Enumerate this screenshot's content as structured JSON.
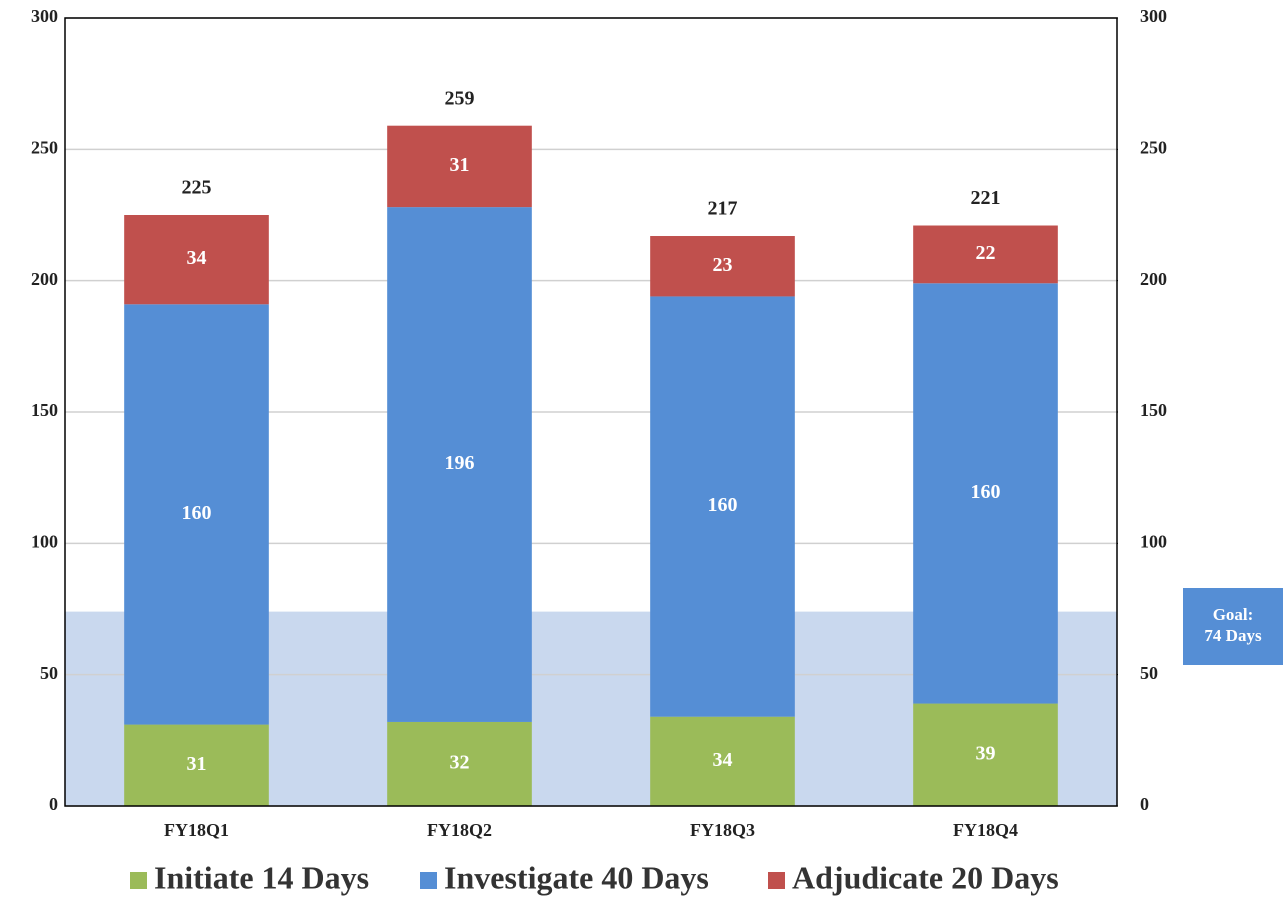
{
  "chart_data": {
    "type": "stacked-bar",
    "categories": [
      "FY18Q1",
      "FY18Q2",
      "FY18Q3",
      "FY18Q4"
    ],
    "series": [
      {
        "name": "Initiate 14 Days",
        "color": "#9bbb59",
        "values": [
          31,
          32,
          34,
          39
        ]
      },
      {
        "name": "Investigate 40 Days",
        "color": "#558ed5",
        "values": [
          160,
          196,
          160,
          160
        ]
      },
      {
        "name": "Adjudicate 20 Days",
        "color": "#c0504d",
        "values": [
          34,
          31,
          23,
          22
        ]
      }
    ],
    "totals": [
      225,
      259,
      217,
      221
    ],
    "goal": {
      "value": 74,
      "label": [
        "Goal:",
        "74 Days"
      ],
      "color": "#c9d8ee",
      "box_color": "#558ed5"
    },
    "ylim": [
      0,
      300
    ],
    "yticks": [
      0,
      50,
      100,
      150,
      200,
      250,
      300
    ],
    "y2lim": [
      0,
      300
    ],
    "y2ticks": [
      0,
      50,
      100,
      150,
      200,
      250,
      300
    ],
    "grid": true,
    "legend": "bottom"
  }
}
